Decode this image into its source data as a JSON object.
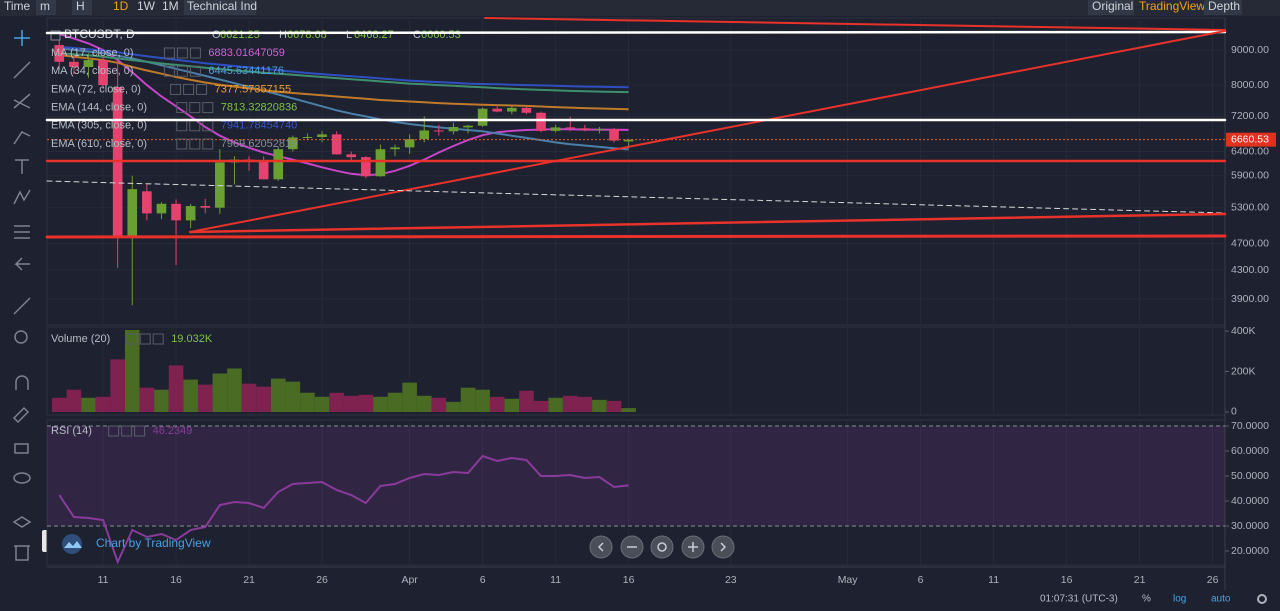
{
  "toolbar": {
    "left": [
      "Time",
      "m",
      "H",
      "1D",
      "1W",
      "1M",
      "Technical Ind"
    ],
    "right": [
      "Original",
      "TradingView",
      "Depth"
    ]
  },
  "status_bar": {
    "time": "01:07:31 (UTC-3)",
    "buttons": [
      "%",
      "log",
      "auto"
    ]
  },
  "watermark": "Chart by TradingView",
  "chart_data": [
    {
      "type": "candlestick",
      "title": "BTCUSDT, D",
      "ohlc_labels": [
        "O",
        "H",
        "L",
        "C"
      ],
      "x": [
        0,
        1,
        2,
        3,
        4,
        5,
        6,
        7,
        8,
        9,
        10,
        11,
        12,
        13,
        14,
        15,
        16,
        17,
        18,
        19,
        20,
        21,
        22,
        23,
        24,
        25,
        26,
        27,
        28,
        29,
        30,
        31,
        32,
        33,
        34,
        35,
        36,
        37,
        38,
        39
      ],
      "open": [
        9150,
        8650,
        8500,
        8700,
        7950,
        4800,
        5600,
        5200,
        5370,
        5080,
        5330,
        5300,
        6170,
        6230,
        6190,
        5830,
        6450,
        6710,
        6720,
        6780,
        6340,
        6280,
        5890,
        6450,
        6490,
        6670,
        6870,
        6850,
        6940,
        6980,
        7390,
        7320,
        7410,
        7290,
        6860,
        6940,
        6920,
        6880,
        6900,
        6621.25
      ],
      "high": [
        9300,
        8850,
        8900,
        8800,
        8700,
        5900,
        5730,
        5400,
        5450,
        5370,
        5460,
        6450,
        6300,
        6300,
        6300,
        6500,
        6750,
        6800,
        6850,
        6850,
        6400,
        6300,
        6550,
        6550,
        6780,
        7200,
        7000,
        7050,
        7000,
        7420,
        7500,
        7450,
        7450,
        7320,
        7000,
        7200,
        7000,
        6950,
        6930,
        6678.68
      ],
      "low": [
        8420,
        8300,
        8200,
        7900,
        4330,
        3820,
        5080,
        5100,
        4370,
        4950,
        5200,
        5190,
        5730,
        6000,
        5830,
        5800,
        6400,
        6650,
        6600,
        6330,
        6200,
        5850,
        5880,
        6300,
        6350,
        6600,
        6750,
        6780,
        6800,
        6950,
        7300,
        7250,
        7250,
        6830,
        6820,
        6850,
        6850,
        6800,
        6600,
        6468.27
      ],
      "close": [
        8650,
        8500,
        8700,
        8000,
        4800,
        5640,
        5200,
        5370,
        5080,
        5330,
        5300,
        6170,
        6230,
        6190,
        5830,
        6450,
        6710,
        6720,
        6780,
        6340,
        6280,
        5890,
        6450,
        6490,
        6670,
        6870,
        6850,
        6950,
        6980,
        7390,
        7320,
        7410,
        7290,
        6860,
        6940,
        6920,
        6880,
        6900,
        6640,
        6660.53
      ],
      "up_color": "#6aa031",
      "down_color": "#e5426f",
      "log_scale": true,
      "grid": true,
      "xlim": [
        -0.84,
        79.85
      ],
      "xticks": [
        {
          "value": 3,
          "label": "11"
        },
        {
          "value": 8,
          "label": "16"
        },
        {
          "value": 13,
          "label": "21"
        },
        {
          "value": 18,
          "label": "26"
        },
        {
          "value": 24,
          "label": "Apr"
        },
        {
          "value": 29,
          "label": "6"
        },
        {
          "value": 34,
          "label": "11"
        },
        {
          "value": 39,
          "label": "16"
        },
        {
          "value": 46,
          "label": "23"
        },
        {
          "value": 54,
          "label": "May"
        },
        {
          "value": 59,
          "label": "6"
        },
        {
          "value": 64,
          "label": "11"
        },
        {
          "value": 69,
          "label": "16"
        },
        {
          "value": 74,
          "label": "21"
        },
        {
          "value": 79,
          "label": "26"
        }
      ],
      "ylim": [
        3575,
        10020
      ],
      "yticks": [
        {
          "value": 9000,
          "label": "9000.00"
        },
        {
          "value": 8000,
          "label": "8000.00"
        },
        {
          "value": 7200,
          "label": "7200.00"
        },
        {
          "value": 6400,
          "label": "6400.00"
        },
        {
          "value": 5900,
          "label": "5900.00"
        },
        {
          "value": 5300,
          "label": "5300.00"
        },
        {
          "value": 4700,
          "label": "4700.00"
        },
        {
          "value": 4300,
          "label": "4300.00"
        },
        {
          "value": 3900,
          "label": "3900.00"
        }
      ],
      "overlays": [
        {
          "name": "MA (17, close, 0)",
          "last_label": "6883.01647059",
          "color": "#c645c8",
          "label_color": "#d65fd6",
          "values": [
            9500,
            9350,
            9200,
            9000,
            8700,
            8350,
            8000,
            7700,
            7450,
            7200,
            6950,
            6750,
            6600,
            6480,
            6380,
            6300,
            6230,
            6150,
            6070,
            6000,
            5940,
            5910,
            5930,
            6000,
            6100,
            6230,
            6380,
            6520,
            6650,
            6760,
            6830,
            6860,
            6880,
            6890,
            6900,
            6895,
            6890,
            6888,
            6885,
            6883
          ]
        },
        {
          "name": "MA (34, close, 0)",
          "last_label": "6445.63441176",
          "color": "#4a7fa8",
          "label_color": "#4aa3df",
          "values": [
            9050,
            9000,
            8950,
            8900,
            8830,
            8750,
            8650,
            8550,
            8450,
            8350,
            8250,
            8150,
            8050,
            7950,
            7850,
            7750,
            7650,
            7550,
            7450,
            7350,
            7270,
            7200,
            7130,
            7070,
            7020,
            6980,
            6940,
            6910,
            6880,
            6850,
            6800,
            6750,
            6700,
            6650,
            6600,
            6560,
            6530,
            6500,
            6470,
            6445
          ]
        },
        {
          "name": "EMA (72, close, 0)",
          "last_label": "7377.57357155",
          "color": "#c07a2a",
          "label_color": "#f0a030",
          "values": [
            8850,
            8800,
            8750,
            8700,
            8620,
            8500,
            8400,
            8310,
            8220,
            8140,
            8070,
            8010,
            7960,
            7910,
            7860,
            7820,
            7790,
            7760,
            7730,
            7700,
            7670,
            7640,
            7610,
            7590,
            7570,
            7550,
            7530,
            7515,
            7500,
            7490,
            7480,
            7470,
            7460,
            7445,
            7430,
            7418,
            7405,
            7395,
            7386,
            7377
          ]
        },
        {
          "name": "EMA (144, close, 0)",
          "last_label": "7813.32820836",
          "color": "#3f8f6f",
          "label_color": "#7ec242",
          "values": [
            8900,
            8870,
            8840,
            8800,
            8750,
            8700,
            8650,
            8600,
            8560,
            8520,
            8480,
            8440,
            8400,
            8370,
            8340,
            8310,
            8280,
            8250,
            8220,
            8190,
            8160,
            8130,
            8100,
            8070,
            8040,
            8020,
            8000,
            7980,
            7960,
            7940,
            7920,
            7900,
            7885,
            7870,
            7857,
            7845,
            7835,
            7826,
            7819,
            7813
          ]
        },
        {
          "name": "EMA (305, close, 0)",
          "last_label": "7941.78454740",
          "color": "#2f4fbf",
          "label_color": "#3856d6",
          "values": [
            9100,
            9060,
            9020,
            8980,
            8930,
            8870,
            8810,
            8760,
            8710,
            8660,
            8610,
            8570,
            8530,
            8490,
            8450,
            8410,
            8370,
            8330,
            8300,
            8270,
            8240,
            8210,
            8180,
            8150,
            8120,
            8100,
            8080,
            8060,
            8040,
            8030,
            8020,
            8010,
            8000,
            7990,
            7980,
            7970,
            7960,
            7955,
            7948,
            7941
          ]
        },
        {
          "name": "EMA (610, close, 0)",
          "last_label": "7969.62052819",
          "label_color": "#8a8e98"
        }
      ]
    },
    {
      "type": "bar",
      "title": "Volume (20)",
      "value_label": "19.032K",
      "label_color": "#7ec242",
      "up_color": "#4a6b24",
      "down_color": "#80224f",
      "values": [
        70000,
        110000,
        70000,
        75000,
        260000,
        405000,
        120000,
        110000,
        230000,
        160000,
        135000,
        190000,
        215000,
        140000,
        125000,
        165000,
        150000,
        95000,
        75000,
        95000,
        80000,
        85000,
        75000,
        95000,
        145000,
        80000,
        70000,
        50000,
        120000,
        110000,
        75000,
        65000,
        105000,
        55000,
        70000,
        80000,
        75000,
        60000,
        55000,
        19032
      ],
      "ylim": [
        -15000,
        420000
      ],
      "yticks": [
        {
          "value": 400000,
          "label": "400K"
        },
        {
          "value": 200000,
          "label": "200K"
        },
        0
      ]
    },
    {
      "type": "line",
      "title": "RSI (14)",
      "value_label": "46.2349",
      "color": "#8a3a9a",
      "band": [
        30,
        70
      ],
      "values": [
        42.4,
        33.6,
        33.2,
        32.4,
        15.6,
        28.4,
        25.6,
        26.8,
        24.4,
        28.4,
        29.6,
        38.4,
        39.6,
        39.2,
        37.2,
        43.6,
        46.8,
        47.2,
        47.6,
        44.4,
        42.4,
        39.2,
        46,
        46.8,
        49.2,
        50.8,
        50.4,
        51.6,
        51.2,
        58,
        56,
        57.2,
        56.4,
        50,
        50,
        50.4,
        49.2,
        49.6,
        45.6,
        46.2349
      ],
      "ylim": [
        14.4,
        72.4
      ],
      "yticks": [
        {
          "value": 70,
          "label": "70.0000"
        },
        {
          "value": 60,
          "label": "60.0000"
        },
        {
          "value": 50,
          "label": "50.0000"
        },
        {
          "value": 40,
          "label": "40.0000"
        },
        {
          "value": 30,
          "label": "30.0000"
        },
        {
          "value": 20,
          "label": "20.0000"
        }
      ]
    }
  ]
}
